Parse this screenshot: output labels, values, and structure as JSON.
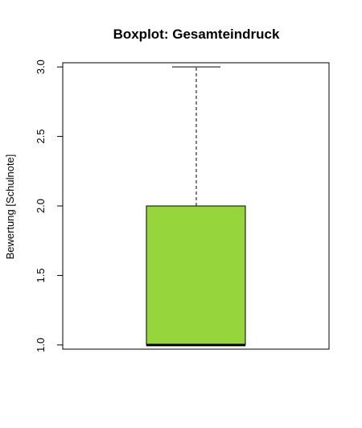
{
  "chart_data": {
    "type": "boxplot",
    "title": "Boxplot: Gesamteindruck",
    "xlabel": "",
    "ylabel": "Bewertung [Schulnote]",
    "ylim": [
      0.97,
      3.03
    ],
    "yticks": [
      1.0,
      1.5,
      2.0,
      2.5,
      3.0
    ],
    "ytick_labels": [
      "1.0",
      "1.5",
      "2.0",
      "2.5",
      "3.0"
    ],
    "grid": false,
    "box": {
      "min": 1.0,
      "q1": 1.0,
      "median": 1.0,
      "q3": 2.0,
      "max": 3.0,
      "fill_color": "#96d63c"
    }
  }
}
